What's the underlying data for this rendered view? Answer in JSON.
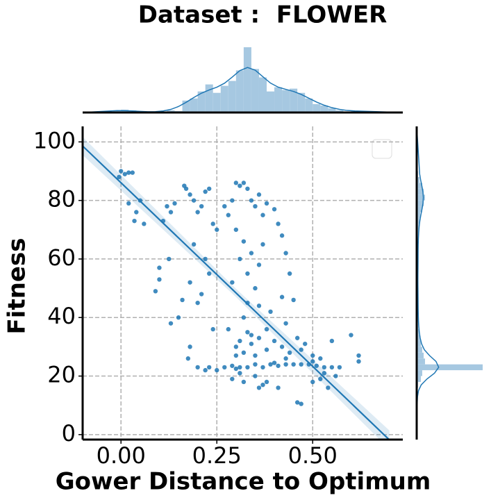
{
  "chart_data": {
    "type": "scatter",
    "title": "Dataset :  FLOWER",
    "xlabel": "Gower Distance to Optimum",
    "ylabel": "Fitness",
    "color": "#1f77b4",
    "hist_color": "#a6c8e1",
    "grid": true,
    "xlim": [
      -0.1,
      0.735
    ],
    "ylim": [
      -1.7,
      105.3
    ],
    "xticks": [
      {
        "value": 0,
        "label": "0.00"
      },
      {
        "value": 0.25,
        "label": "0.25"
      },
      {
        "value": 0.5,
        "label": "0.50"
      }
    ],
    "yticks": [
      0,
      20,
      40,
      60,
      80,
      100
    ],
    "x": [
      0.0,
      0.01,
      0.02,
      0.03,
      -0.005,
      0.04,
      0.035,
      0.05,
      0.02,
      0.06,
      0.1,
      0.1,
      0.09,
      0.13,
      0.14,
      0.12,
      0.11,
      0.125,
      0.16,
      0.15,
      0.13,
      0.175,
      0.18,
      0.165,
      0.17,
      0.18,
      0.19,
      0.2,
      0.21,
      0.22,
      0.23,
      0.24,
      0.25,
      0.22,
      0.23,
      0.21,
      0.2,
      0.19,
      0.24,
      0.18,
      0.27,
      0.28,
      0.29,
      0.3,
      0.31,
      0.32,
      0.33,
      0.34,
      0.35,
      0.36,
      0.37,
      0.38,
      0.3,
      0.32,
      0.34,
      0.36,
      0.33,
      0.35,
      0.31,
      0.37,
      0.29,
      0.4,
      0.41,
      0.42,
      0.43,
      0.44,
      0.45,
      0.43,
      0.42,
      0.39,
      0.33,
      0.32,
      0.36,
      0.38,
      0.28,
      0.2,
      0.23,
      0.25,
      0.27,
      0.29,
      0.31,
      0.33,
      0.35,
      0.37,
      0.39,
      0.41,
      0.43,
      0.45,
      0.47,
      0.49,
      0.51,
      0.53,
      0.55,
      0.57,
      0.22,
      0.3,
      0.4,
      0.5,
      0.3,
      0.31,
      0.32,
      0.33,
      0.34,
      0.35,
      0.36,
      0.38,
      0.4,
      0.42,
      0.44,
      0.46,
      0.48,
      0.5,
      0.52,
      0.3,
      0.34,
      0.43,
      0.47,
      0.55,
      0.62,
      0.62,
      0.6,
      0.29,
      0.32,
      0.35,
      0.37,
      0.41,
      0.46,
      0.47,
      0.5,
      0.52,
      0.54,
      0.56,
      0.53,
      0.31,
      0.36,
      0.38
    ],
    "y": [
      90,
      89,
      89.5,
      89.5,
      88,
      76,
      73,
      80,
      79,
      72,
      57,
      53,
      49,
      76,
      79,
      78,
      73,
      60,
      46,
      40,
      38,
      26,
      30,
      85,
      84,
      82,
      80,
      76,
      78,
      83,
      84,
      72,
      70,
      60,
      55,
      48,
      45,
      65,
      36,
      52,
      78,
      75,
      80,
      86,
      85,
      86,
      84,
      80,
      78,
      82,
      75,
      79,
      70,
      66,
      62,
      58,
      55,
      50,
      60,
      65,
      52,
      77,
      72,
      68,
      62,
      55,
      46,
      38,
      47,
      42,
      45,
      40,
      44,
      36,
      36,
      23,
      23,
      22,
      23,
      23.5,
      23,
      23,
      24,
      23,
      24,
      23.5,
      24,
      24,
      24,
      24,
      23.5,
      23,
      23,
      23,
      22,
      22.5,
      24.5,
      25,
      30,
      32,
      28,
      35,
      31,
      27,
      33,
      29,
      32,
      30,
      28,
      33,
      31,
      27,
      26,
      27,
      34,
      26,
      29,
      32,
      27,
      25,
      34,
      19,
      18,
      20,
      17,
      16,
      11,
      10.5,
      18,
      19,
      16,
      20,
      21,
      21,
      16,
      18
    ],
    "regression": {
      "x": [
        -0.1,
        0.3,
        0.7
      ],
      "y": [
        98.6,
        48.4,
        -1.8
      ],
      "lower": [
        95.5,
        47.0,
        -5.0
      ],
      "upper": [
        101.7,
        49.8,
        1.4
      ]
    },
    "marginal_x": {
      "lim": [
        0,
        95
      ],
      "bins": [
        -0.02,
        0,
        0.02,
        0.04,
        0.06,
        0.08,
        0.1,
        0.12,
        0.14,
        0.16,
        0.18,
        0.2,
        0.22,
        0.24,
        0.26,
        0.28,
        0.3,
        0.32,
        0.34,
        0.36,
        0.38,
        0.4,
        0.42,
        0.44,
        0.46,
        0.48,
        0.5,
        0.52,
        0.54,
        0.56,
        0.58,
        0.6,
        0.62
      ],
      "counts": [
        2,
        4,
        3,
        1,
        0,
        1,
        1,
        3,
        2,
        17,
        20,
        30,
        40,
        28,
        38,
        45,
        60,
        93,
        62,
        50,
        30,
        36,
        32,
        34,
        28,
        20,
        12,
        10,
        6,
        3,
        1,
        2
      ]
    },
    "marginal_y": {
      "lim": [
        0,
        95
      ],
      "bins": [
        10,
        12,
        14,
        16,
        18,
        20,
        22,
        24,
        26,
        28,
        30,
        32,
        34,
        36,
        38,
        40,
        42,
        44,
        46,
        48,
        50,
        52,
        54,
        56,
        58,
        60,
        62,
        64,
        66,
        68,
        70,
        72,
        74,
        76,
        78,
        80,
        82,
        84,
        86,
        88,
        90
      ],
      "counts": [
        1,
        0,
        1,
        2,
        6,
        8,
        95,
        12,
        10,
        8,
        6,
        5,
        3,
        2,
        3,
        2,
        2,
        2,
        2,
        2,
        2,
        1,
        2,
        2,
        2,
        2,
        2,
        2,
        2,
        3,
        3,
        4,
        5,
        8,
        10,
        12,
        10,
        8,
        4,
        2
      ]
    }
  }
}
